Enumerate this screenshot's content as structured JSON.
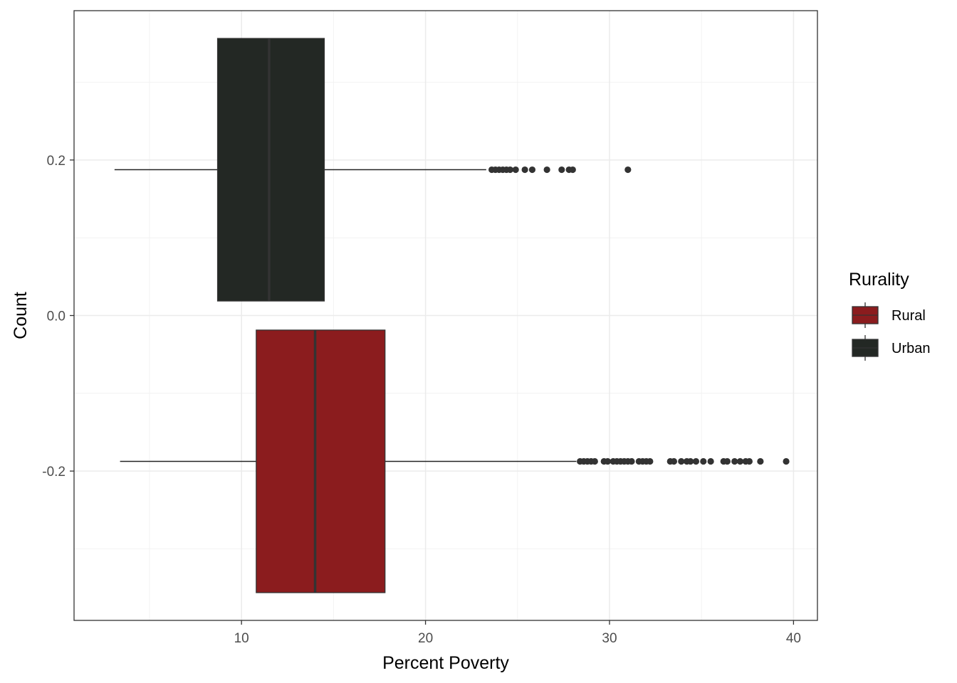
{
  "chart_data": {
    "type": "boxplot",
    "orientation": "horizontal",
    "xlabel": "Percent Poverty",
    "ylabel": "Count",
    "xlim": [
      0.9,
      41.3
    ],
    "ylim": [
      -0.392,
      0.392
    ],
    "x_ticks": [
      10,
      20,
      30,
      40
    ],
    "x_tick_labels": [
      "10",
      "20",
      "30",
      "40"
    ],
    "y_ticks": [
      0.2,
      0.0,
      -0.2
    ],
    "y_tick_labels": [
      "0.2",
      "0.0",
      "-0.2"
    ],
    "x_minor_ticks": [
      5,
      15,
      25,
      35
    ],
    "y_minor_ticks": [
      0.3,
      0.1,
      -0.1,
      -0.3
    ],
    "grid": true,
    "theme": "bw",
    "series": [
      {
        "name": "Urban",
        "color": "#232824",
        "y_center": 0.1875,
        "y_range": [
          0.0187,
          0.3563
        ],
        "whisker_low": 3.1,
        "q1": 8.7,
        "median": 11.5,
        "q3": 14.5,
        "whisker_high": 23.3,
        "outliers": [
          23.6,
          23.8,
          24.0,
          24.2,
          24.4,
          24.6,
          24.9,
          25.4,
          25.8,
          26.6,
          27.4,
          27.8,
          28.0,
          31.0
        ]
      },
      {
        "name": "Rural",
        "color": "#8b1c1e",
        "y_center": -0.1875,
        "y_range": [
          -0.3563,
          -0.0187
        ],
        "whisker_low": 3.4,
        "q1": 10.8,
        "median": 14.0,
        "q3": 17.8,
        "whisker_high": 28.2,
        "outliers": [
          28.4,
          28.6,
          28.8,
          29.0,
          29.2,
          29.7,
          29.9,
          30.2,
          30.4,
          30.6,
          30.8,
          31.0,
          31.2,
          31.6,
          31.8,
          32.0,
          32.2,
          33.3,
          33.5,
          33.9,
          34.2,
          34.4,
          34.7,
          35.1,
          35.5,
          36.2,
          36.4,
          36.8,
          37.1,
          37.4,
          37.6,
          38.2,
          39.6
        ]
      }
    ],
    "legend": {
      "title": "Rurality",
      "placement": "right",
      "items": [
        {
          "label": "Rural",
          "color": "#8b1c1e"
        },
        {
          "label": "Urban",
          "color": "#232824"
        }
      ]
    }
  }
}
